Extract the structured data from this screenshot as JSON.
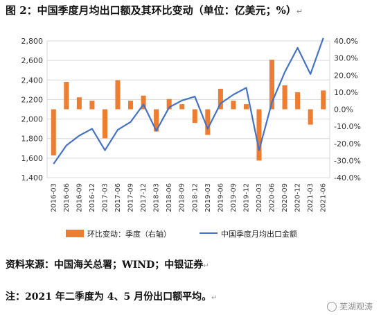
{
  "header": {
    "title": "图 2：中国季度月均出口额及其环比变动（单位：亿美元；%）",
    "paragraph_mark": "↵"
  },
  "footer": {
    "source": "资料来源：中国海关总署；WIND；中银证券",
    "note": "注：2021 年二季度为 4、5 月份出口额平均。",
    "paragraph_mark": "↵",
    "watermark": "芜湖观涛"
  },
  "colors": {
    "bar": "#ED7D31",
    "line": "#4472C4",
    "grid": "#D9D9D9",
    "axis": "#BFBFBF"
  },
  "chart_data": {
    "type": "bar+line",
    "categories": [
      "2016-03",
      "2016-06",
      "2016-09",
      "2016-12",
      "2017-03",
      "2017-06",
      "2017-09",
      "2017-12",
      "2018-03",
      "2018-06",
      "2018-09",
      "2018-12",
      "2019-03",
      "2019-06",
      "2019-09",
      "2019-12",
      "2020-03",
      "2020-06",
      "2020-09",
      "2020-12",
      "2021-03",
      "2021-06"
    ],
    "tick_labels": [
      "2016-03",
      "2016-06",
      "2016-09",
      "2016-12",
      "2017-03",
      "2017-06",
      "2017-09",
      "2017-12",
      "2018-03",
      "2018-06",
      "2018-09",
      "2018-12",
      "2019-03",
      "2019-06",
      "2019-09",
      "2019-12",
      "2020-03",
      "2020-06",
      "2020-09",
      "2020-12",
      "2021-03",
      "2021-06"
    ],
    "grid": true,
    "legend_position": "bottom",
    "y_left": {
      "min": 1400,
      "max": 2800,
      "step": 200,
      "tick_labels": [
        "1,400",
        "1,600",
        "1,800",
        "2,000",
        "2,200",
        "2,400",
        "2,600",
        "2,800"
      ]
    },
    "y_right": {
      "min": -40,
      "max": 40,
      "step": 10,
      "tick_labels": [
        "-40.0%",
        "-30.0%",
        "-20.0%",
        "-10.0%",
        "0.0%",
        "10.0%",
        "20.0%",
        "30.0%",
        "40.0%"
      ]
    },
    "series": [
      {
        "name": "环比变动：季度（右轴）",
        "type": "bar",
        "axis": "right",
        "values": [
          -27,
          16,
          7,
          5,
          -17,
          17,
          5,
          8,
          -13,
          6,
          3,
          -8,
          -15,
          12,
          5,
          3,
          -30,
          29,
          14,
          10,
          -9,
          11
        ]
      },
      {
        "name": "中国季度月均出口金额",
        "type": "line",
        "axis": "left",
        "values": [
          1540,
          1730,
          1830,
          1900,
          1680,
          1890,
          1970,
          2150,
          1880,
          2120,
          2190,
          2230,
          1900,
          2160,
          2250,
          2320,
          1680,
          2170,
          2480,
          2730,
          2460,
          2830
        ]
      }
    ]
  }
}
